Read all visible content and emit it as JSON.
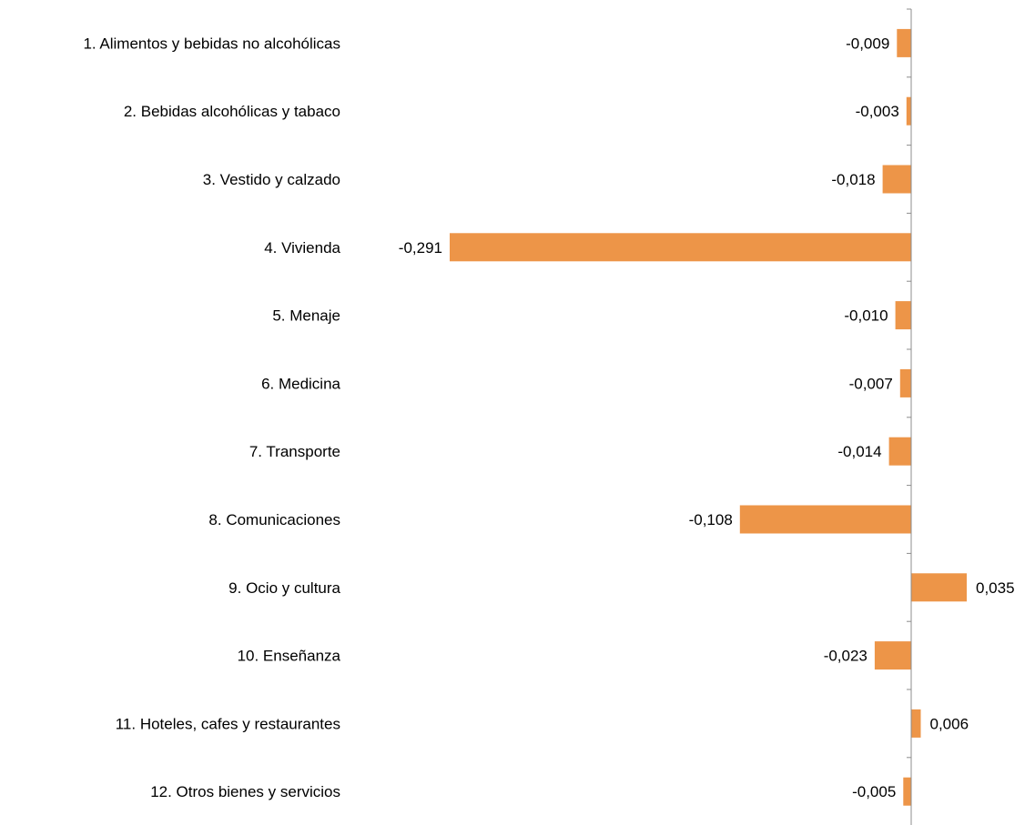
{
  "chart_data": {
    "type": "bar",
    "orientation": "horizontal",
    "categories": [
      "1. Alimentos y bebidas no alcohólicas",
      "2. Bebidas alcohólicas y tabaco",
      "3. Vestido y calzado",
      "4. Vivienda",
      "5. Menaje",
      "6. Medicina",
      "7. Transporte",
      "8. Comunicaciones",
      "9. Ocio y cultura",
      "10. Enseñanza",
      "11. Hoteles, cafes y restaurantes",
      "12. Otros bienes y servicios"
    ],
    "values": [
      -0.009,
      -0.003,
      -0.018,
      -0.291,
      -0.01,
      -0.007,
      -0.014,
      -0.108,
      0.035,
      -0.023,
      0.006,
      -0.005
    ],
    "value_labels": [
      "-0,009",
      "-0,003",
      "-0,018",
      "-0,291",
      "-0,010",
      "-0,007",
      "-0,014",
      "-0,108",
      "0,035",
      "-0,023",
      "0,006",
      "-0,005"
    ],
    "bar_color": "#ED9548",
    "axis_color": "#8C8C8C",
    "title": "",
    "xlabel": "",
    "ylabel": "",
    "grid": false,
    "legend": false
  }
}
